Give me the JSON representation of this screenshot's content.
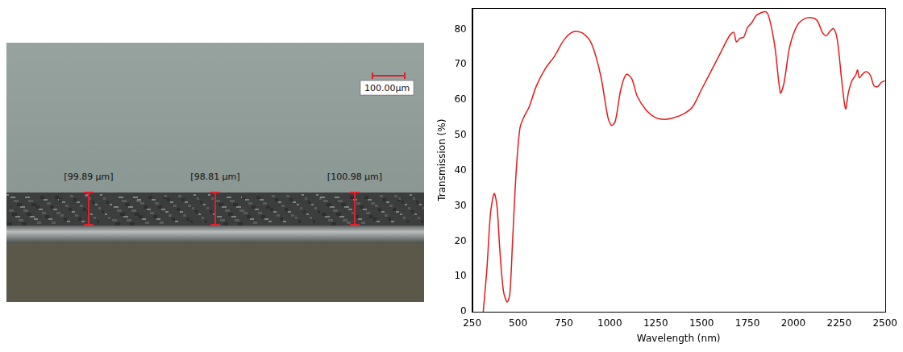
{
  "image": {
    "scale_bar": "100.00µm",
    "measurements": [
      "[99.89 µm]",
      "[98.81 µm]",
      "[100.98 µm]"
    ]
  },
  "chart_data": {
    "type": "line",
    "x_label": "Wavelength (nm)",
    "y_label": "Transmission (%)",
    "color": "#e41a1c",
    "x": [
      310,
      330,
      350,
      370,
      385,
      400,
      420,
      440,
      455,
      470,
      490,
      510,
      530,
      560,
      600,
      650,
      700,
      750,
      800,
      850,
      900,
      950,
      990,
      1010,
      1030,
      1060,
      1090,
      1120,
      1150,
      1200,
      1250,
      1300,
      1350,
      1400,
      1450,
      1500,
      1550,
      1600,
      1650,
      1675,
      1690,
      1710,
      1730,
      1750,
      1775,
      1800,
      1850,
      1870,
      1900,
      1930,
      1950,
      1980,
      2020,
      2060,
      2100,
      2130,
      2160,
      2180,
      2200,
      2220,
      2240,
      2265,
      2285,
      2300,
      2320,
      2340,
      2350,
      2360,
      2380,
      2400,
      2420,
      2440,
      2460,
      2480,
      2500
    ],
    "values": [
      0,
      12,
      28,
      33.5,
      30,
      18,
      6,
      2.8,
      5,
      20,
      40,
      52,
      55,
      58,
      64,
      69,
      72.5,
      77,
      79.3,
      79,
      76,
      67,
      55,
      52.8,
      54,
      63,
      67.3,
      66,
      61,
      57,
      55,
      54.5,
      55,
      56,
      58,
      63,
      68,
      73,
      78,
      79.2,
      76.5,
      77.5,
      77.8,
      80.5,
      82,
      84,
      85,
      83,
      75,
      62,
      65,
      75,
      81,
      83,
      83.3,
      82.5,
      79,
      78.2,
      79.5,
      80.2,
      77,
      65,
      57.5,
      62,
      65.5,
      67,
      68.5,
      66.3,
      67.5,
      68,
      67,
      64,
      63.8,
      65,
      65.5
    ],
    "xlim": [
      250,
      2500
    ],
    "xticks": [
      250,
      500,
      750,
      1000,
      1250,
      1500,
      1750,
      2000,
      2250,
      2500
    ],
    "ylim": [
      0,
      86
    ],
    "yticks": [
      0,
      10,
      20,
      30,
      40,
      50,
      60,
      70,
      80
    ],
    "grid": false
  }
}
